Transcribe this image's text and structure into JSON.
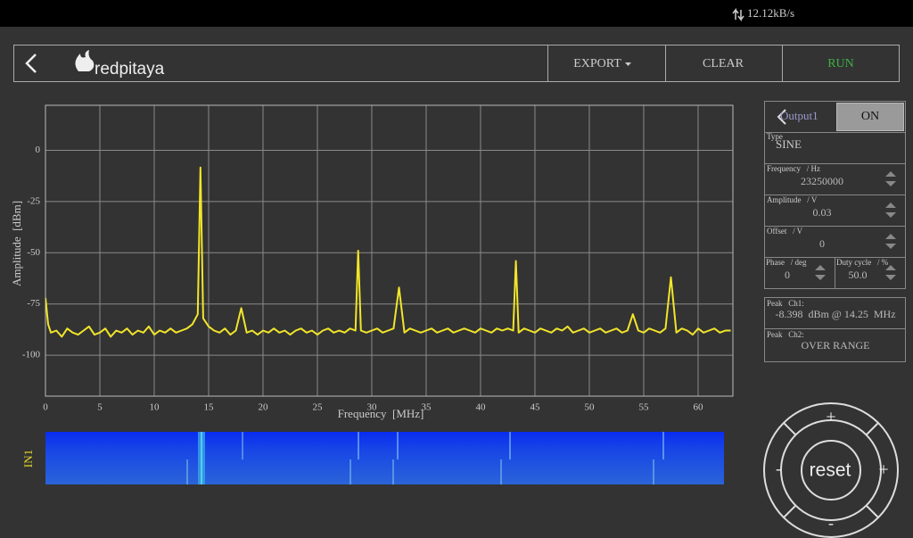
{
  "status": {
    "speed": "12.12kB/s"
  },
  "toolbar": {
    "brand": "redpitaya",
    "buttons": [
      "EXPORT",
      "CLEAR",
      "RUN"
    ]
  },
  "chart_data": {
    "type": "line",
    "xlabel": "Frequency  [MHz]",
    "ylabel": "Amplitude  [dBm]",
    "x": [
      0,
      0.25,
      0.5,
      1,
      1.5,
      2,
      2.5,
      3,
      3.5,
      4,
      4.5,
      5,
      5.5,
      6,
      6.5,
      7,
      7.5,
      8,
      8.5,
      9,
      9.5,
      10,
      10.5,
      11,
      11.5,
      12,
      12.5,
      13,
      13.5,
      14,
      14.25,
      14.5,
      15,
      15.5,
      16,
      16.5,
      17,
      17.5,
      18,
      18.5,
      19,
      19.5,
      20,
      20.5,
      21,
      21.5,
      22,
      22.5,
      23,
      23.5,
      24,
      24.5,
      25,
      25.5,
      26,
      26.5,
      27,
      27.5,
      28,
      28.5,
      28.75,
      29,
      29.5,
      30,
      30.5,
      31,
      31.5,
      32,
      32.5,
      33,
      33.5,
      34,
      34.5,
      35,
      35.5,
      36,
      36.5,
      37,
      37.5,
      38,
      38.5,
      39,
      39.5,
      40,
      40.5,
      41,
      41.5,
      42,
      42.5,
      43,
      43.25,
      43.5,
      44,
      44.5,
      45,
      45.5,
      46,
      46.5,
      47,
      47.5,
      48,
      48.5,
      49,
      49.5,
      50,
      50.5,
      51,
      51.5,
      52,
      52.5,
      53,
      53.5,
      54,
      54.5,
      55,
      55.5,
      56,
      56.5,
      57,
      57.5,
      58,
      58.5,
      59,
      59.5,
      60,
      60.5,
      61,
      61.5,
      62,
      62.5,
      63
    ],
    "values": [
      -72,
      -85,
      -89,
      -88,
      -91,
      -87,
      -89,
      -90,
      -88,
      -86,
      -90,
      -89,
      -87,
      -91,
      -88,
      -89,
      -87,
      -90,
      -88,
      -89,
      -86,
      -90,
      -88,
      -89,
      -87,
      -89,
      -88,
      -87,
      -85,
      -80,
      -8.4,
      -82,
      -86,
      -88,
      -89,
      -87,
      -90,
      -88,
      -77,
      -89,
      -88,
      -90,
      -88,
      -89,
      -87,
      -89,
      -88,
      -90,
      -88,
      -87,
      -89,
      -88,
      -90,
      -88,
      -87,
      -89,
      -88,
      -89,
      -87,
      -88,
      -49,
      -88,
      -89,
      -88,
      -87,
      -89,
      -88,
      -87,
      -67,
      -89,
      -87,
      -88,
      -89,
      -88,
      -87,
      -89,
      -88,
      -87,
      -89,
      -88,
      -87,
      -88,
      -89,
      -87,
      -88,
      -89,
      -87,
      -88,
      -87,
      -88,
      -54,
      -89,
      -87,
      -88,
      -89,
      -87,
      -88,
      -89,
      -87,
      -88,
      -86,
      -89,
      -88,
      -87,
      -89,
      -88,
      -87,
      -89,
      -88,
      -87,
      -89,
      -88,
      -80,
      -88,
      -89,
      -87,
      -88,
      -89,
      -87,
      -62,
      -89,
      -87,
      -88,
      -90,
      -87,
      -89,
      -88,
      -87,
      -89,
      -88,
      -88
    ],
    "color": "#f2e52a",
    "xlim": [
      0,
      63.2
    ],
    "ylim": [
      -120,
      22
    ],
    "xticks": [
      0,
      5,
      10,
      15,
      20,
      25,
      30,
      35,
      40,
      45,
      50,
      55,
      60
    ],
    "yticks": [
      -100,
      -75,
      -50,
      -25,
      0
    ],
    "grid": true
  },
  "waterfall": {
    "label": "IN1"
  },
  "generator": {
    "tab": "Output1",
    "state": "ON",
    "type_label": "Type",
    "type_value": "SINE",
    "fields": [
      {
        "label": "Frequency   / Hz",
        "value": "23250000"
      },
      {
        "label": "Amplitude   / V",
        "value": "0.03"
      },
      {
        "label": "Offset   / V",
        "value": "0"
      }
    ],
    "phase": {
      "label": "Phase   / deg",
      "value": "0"
    },
    "duty": {
      "label": "Duty cycle   / %",
      "value": "50.0"
    }
  },
  "peaks": [
    {
      "label": "Peak   Ch1:",
      "value": "-8.398  dBm @ 14.25  MHz"
    },
    {
      "label": "Peak   Ch2:",
      "value": "OVER RANGE"
    }
  ],
  "control": {
    "up": "+",
    "left": "-",
    "center": "reset",
    "right": "+",
    "down": "-"
  }
}
